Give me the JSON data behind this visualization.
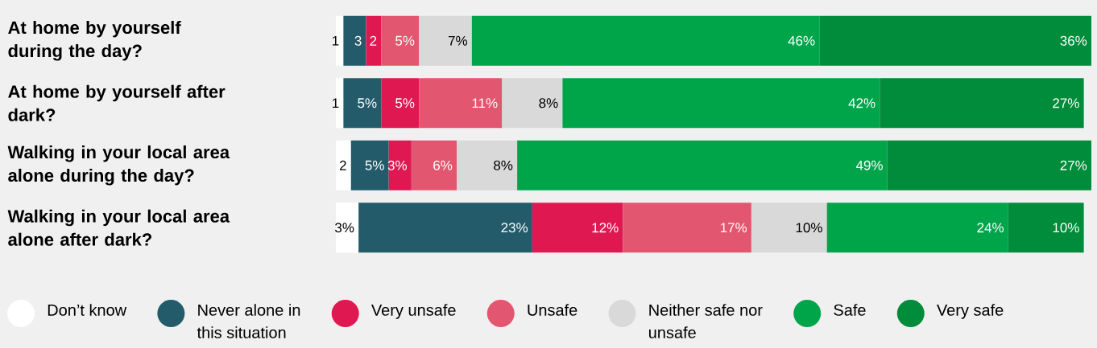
{
  "chart_data": {
    "type": "bar",
    "orientation": "horizontal",
    "stacked": true,
    "tick_labels": "y",
    "legend": "bottom",
    "categories": [
      "At home by yourself during the day?",
      "At home by yourself after dark?",
      "Walking in your local area alone during the day?",
      "Walking in your local area alone after dark?"
    ],
    "series": [
      {
        "name": "Don’t know",
        "color": "#ffffff",
        "values": [
          1,
          1,
          2,
          3
        ],
        "value_labels": [
          "1",
          "1",
          "2",
          "3%"
        ]
      },
      {
        "name": "Never alone in this situation",
        "color": "#245b6b",
        "values": [
          3,
          5,
          5,
          23
        ],
        "value_labels": [
          "3",
          "5%",
          "5%",
          "23%"
        ]
      },
      {
        "name": "Very unsafe",
        "color": "#df1852",
        "values": [
          2,
          5,
          3,
          12
        ],
        "value_labels": [
          "2",
          "5%",
          "3%",
          "12%"
        ]
      },
      {
        "name": "Unsafe",
        "color": "#e3566f",
        "values": [
          5,
          11,
          6,
          17
        ],
        "value_labels": [
          "5%",
          "11%",
          "6%",
          "17%"
        ]
      },
      {
        "name": "Neither safe nor unsafe",
        "color": "#d9d9d9",
        "values": [
          7,
          8,
          8,
          10
        ],
        "value_labels": [
          "7%",
          "8%",
          "8%",
          "10%"
        ]
      },
      {
        "name": "Safe",
        "color": "#00a54a",
        "values": [
          46,
          42,
          49,
          24
        ],
        "value_labels": [
          "46%",
          "42%",
          "49%",
          "24%"
        ]
      },
      {
        "name": "Very safe",
        "color": "#008c3a",
        "values": [
          36,
          27,
          27,
          10
        ],
        "value_labels": [
          "36%",
          "27%",
          "27%",
          "10%"
        ]
      }
    ]
  }
}
